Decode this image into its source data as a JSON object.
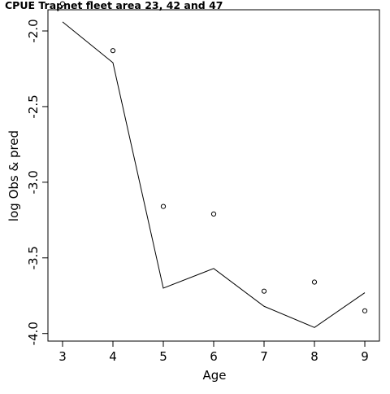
{
  "chart_data": {
    "type": "line",
    "title": "CPUE Trapnet fleet area 23, 42 and 47",
    "xlabel": "Age",
    "ylabel": "log Obs & pred",
    "x": [
      3,
      4,
      5,
      6,
      7,
      8,
      9
    ],
    "xlim": [
      2.71,
      9.29
    ],
    "ylim": [
      -4.05,
      -1.86
    ],
    "xticks": [
      3,
      4,
      5,
      6,
      7,
      8,
      9
    ],
    "yticks": [
      -2.0,
      -2.5,
      -3.0,
      -3.5,
      -4.0
    ],
    "ytick_labels": [
      "-2.0",
      "-2.5",
      "-3.0",
      "-3.5",
      "-4.0"
    ],
    "series": [
      {
        "style": "points",
        "marker": "open-circle",
        "values": [
          -1.82,
          -2.13,
          -3.16,
          -3.21,
          -3.72,
          -3.66,
          -3.85
        ]
      },
      {
        "style": "line",
        "values": [
          -1.94,
          -2.21,
          -3.7,
          -3.57,
          -3.82,
          -3.96,
          -3.73
        ]
      }
    ],
    "grid": false,
    "legend": "none",
    "colors": {
      "foreground": "#000000",
      "background": "#ffffff"
    }
  }
}
